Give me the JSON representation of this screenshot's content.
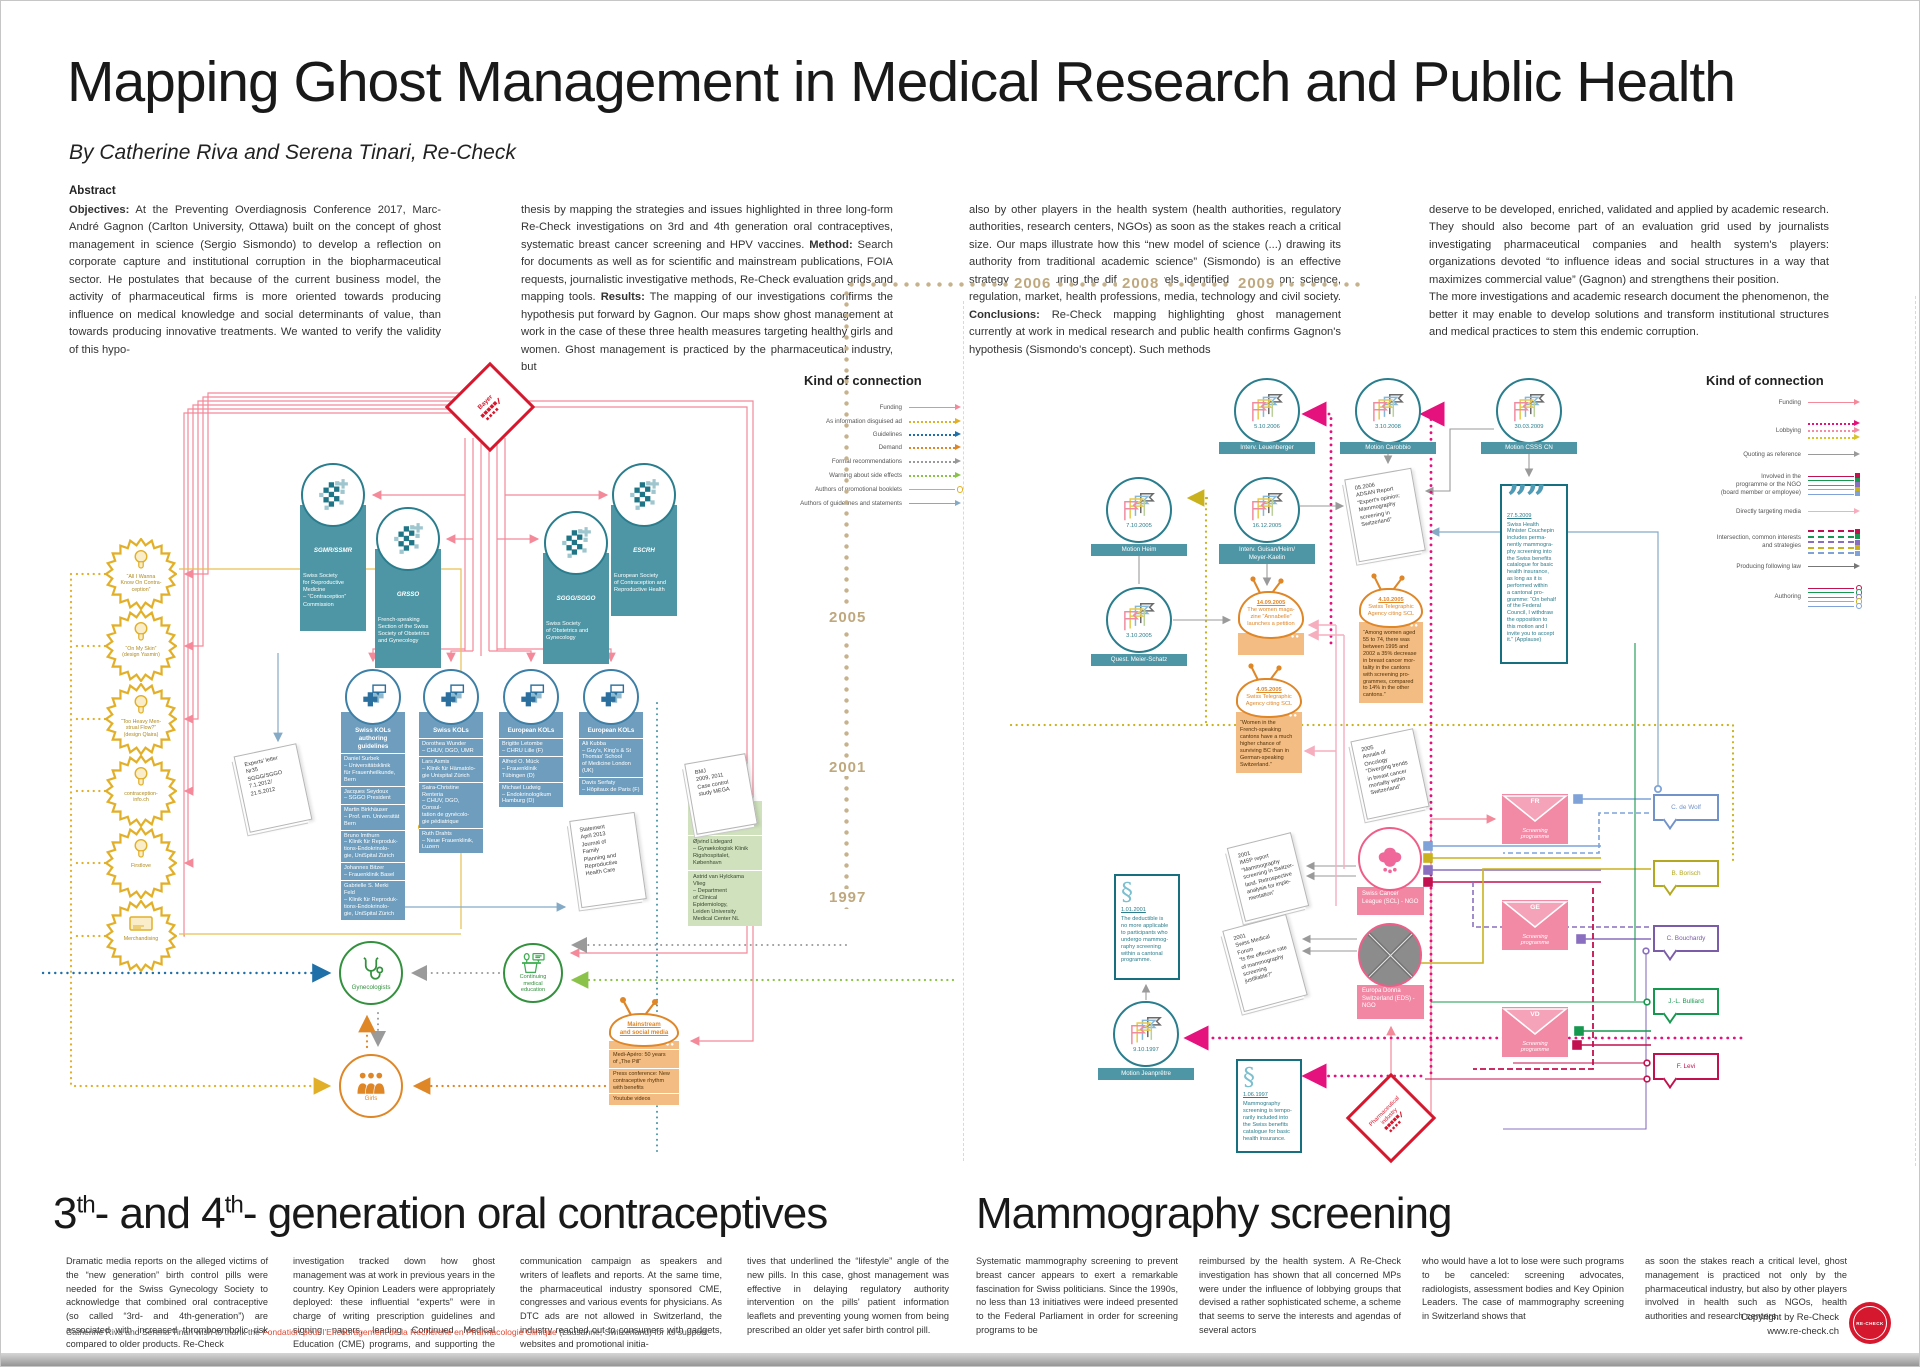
{
  "palette": {
    "teal": "#2a7d8d",
    "teal_box": "#4e96a5",
    "blue_box": "#6f9dbd",
    "pink_line": "#f4899a",
    "red": "#d6182e",
    "yellow": "#e2af28",
    "orange": "#df8627",
    "orange_fill": "#f3bc82",
    "green": "#33913e",
    "pink_node": "#f287a3",
    "magenta": "#e5127d",
    "tan": "#c6b28c"
  },
  "header": {
    "title": "Mapping Ghost Management in Medical Research and Public Health",
    "byline": "By Catherine Riva and Serena Tinari, Re-Check"
  },
  "abstract": {
    "heading": "Abstract",
    "col1": [
      {
        "b": "Objectives:"
      },
      {
        "t": " At the Preventing Overdiagnosis Conference 2017, Marc-André Gagnon (Carlton University, Ottawa) built on the concept of ghost management in science (Sergio Sismondo) to develop a reflection on corporate capture and institutional corruption in the biopharmaceutical sector. He postulates that because of the current business model, the activity of pharmaceutical firms is more oriented towards producing influence on medical knowledge and social determinants of value, than towards producing innovative treatments. We wanted to verify the validity of this hypo-"
      }
    ],
    "col2": [
      {
        "t": "thesis by mapping the strategies and issues highlighted in three long-form Re-Check investigations on 3rd and 4th generation oral contraceptives, systematic breast cancer screening and HPV vaccines. "
      },
      {
        "b": "Method:"
      },
      {
        "t": " Search for documents as well as for scientific and mainstream publications, FOIA requests, journalistic investigative methods, Re-Check evaluation grids and mapping tools. "
      },
      {
        "b": "Results:"
      },
      {
        "t": " The mapping of our investigations confirms the hypothesis put forward by Gagnon. Our maps show ghost management at work in the case of these three health measures targeting healthy girls and women. Ghost management is practiced by the pharmaceutical industry, but"
      }
    ],
    "col3": [
      {
        "t": "also by other players in the health system (health authorities, regulatory authorities, research centers, NGOs) as soon as the stakes reach a critical size. Our maps illustrate how this “new model of science (...) drawing its authority from traditional academic science” (Sismondo) is an effective strategy for capturing the different levels identified by Gagnon: science, regulation, market, health professions, media, technology and civil society. "
      },
      {
        "b": "Conclusions:"
      },
      {
        "t": " Re-Check mapping highlighting ghost management currently at work in medical research and public health confirms Gagnon's hypothesis (Sismondo's concept). Such methods"
      }
    ],
    "col4": [
      {
        "t": "deserve to be developed, enriched, validated and applied by academic research. They should also become part of an evaluation grid used by journalists investigating pharmaceutical companies and health system's players: organizations devoted “to influence ideas and social structures in a way that maximizes commercial value” (Gagnon) and strengthens their position.\nThe more investigations and academic research document the phenomenon, the better it may enable to develop solutions and transform institutional structures and medical practices to stem this endemic corruption."
      }
    ]
  },
  "legend_left": {
    "title": "Kind of connection",
    "items": [
      "Funding",
      "As information disguised ad",
      "Guidelines",
      "Demand",
      "Formal recommendations",
      "Warning about side effects",
      "Authors of promotional booklets",
      "Authors of guidelines and statements"
    ]
  },
  "legend_right": {
    "title": "Kind of connection",
    "items": [
      "Funding",
      "Lobbying",
      "Quoting as reference",
      "Involved in the\nprogramme or the NGO\n(board member or employee)",
      "Directly targeting media",
      "Intersection, common interests\nand strategies",
      "Producing following law",
      "Authoring"
    ]
  },
  "contraceptives": {
    "bayer": "Bayer",
    "societies": [
      {
        "abbr": "SGMR/SSMR",
        "desc": "Swiss Society\nfor Reproductive\nMedicine\n– “Contraception”\nCommission"
      },
      {
        "abbr": "GRSSO",
        "desc": "French-speaking\nSection of the Swiss\nSociety of Obstetrics\nand Gynecology"
      },
      {
        "abbr": "SGGG/SGGO",
        "desc": "Swiss Society\nof Obstetrics and\nGynecology"
      },
      {
        "abbr": "ESCRH",
        "desc": "European Society\nof Contraception and\nReproductive Health"
      }
    ],
    "badges": [
      "“All I Wanna\nKnow On Contra-\nception”",
      "“On My Skin”\n(design Yasmin)",
      "“Too Heavy Men-\nstrual Flow?”\n(design Qlaira)",
      "contraception-\ninfo.ch",
      "Firstlove",
      "Merchandising"
    ],
    "experts_letter": "Experts' letter\nNr35\nSGGG/SGGO\n7.1.2012/\n21.5.2012",
    "kol_groups": [
      {
        "title": "Swiss KOLs\nauthoring\nguidelines",
        "members": [
          "Daniel Surbek\n– Universitätsklinik\nfür Frauenheilkunde,\nBern",
          "Jacques Seydoux\n– SGGO President",
          "Martin Birkhäuser\n– Prof. em. Universität\nBern",
          "Bruno Imthurn\n– Klinik für Reproduk-\ntions-Endokrinolo-\ngie, UniSpital Zürich",
          "Johannes Bitzer\n– Frauenklinik Basel",
          "Gabrielle S. Merki\nFeld\n– Klinik für Reproduk-\ntions-Endokrinolo-\ngie, UniSpital Zürich"
        ]
      },
      {
        "title": "Swiss KOLs",
        "members": [
          "Dorothea Wunder\n– CHUV, DGO, UMR",
          "Lars Asmis\n– Klinik für Hämatolo-\ngie Unispital Zürich",
          "Saira-Christine\nRenteria\n– CHUV, DGO, Consul-\ntation de gynécolo-\ngie pédiatrique",
          "Ruth Drahts\n– Neue Frauenklinik,\nLuzern"
        ]
      },
      {
        "title": "European KOLs",
        "members": [
          "Brigitte Letombe\n– CHRU Lille (F)",
          "Alfred O. Mück\n– Frauenklinik\nTübingen (D)",
          "Michael Ludwig\n– Endokrinologikum\nHamburg (D)"
        ]
      },
      {
        "title": "European KOLs",
        "members": [
          "Ali Kubba\n– Guy's, King's & St\nThomas' School\nof Medicine London\n(UK)",
          "Davis Serfaty\n– Hôpitaux de Paris (F)"
        ]
      }
    ],
    "statement_paper": "Statement\nApril 2013\nJournal of\nFamily\nPlanning and\nReproductive\nHealth Care",
    "bmj_paper": "BMJ\n2009, 2011\nCase control\nstudy MEGA",
    "researchers": [
      "Øjvind Lidegard\n– Gynækologisk Klinik\nRigshospitalet,\nKøbenhavn",
      "Astrid van Hylckama\nVlieg\n– Department\nof Clinical\nEpidemiology,\nLeiden University\nMedical Center NL"
    ],
    "gynecologists": "Gynecologists",
    "cme": "Continuing\nmedical\neducation",
    "girls": "Girls",
    "media": {
      "title": "Mainstream\nand social media",
      "items": [
        "Medi-Apéro: 50 years\nof „The Pill“",
        "Press conference: New\ncontraceptive rhythm\nwith benefits",
        "Youtube videos"
      ]
    }
  },
  "mammography": {
    "years_top": [
      "2006",
      "2008",
      "2009"
    ],
    "years_left": [
      "2005",
      "2001",
      "1997"
    ],
    "motions": [
      {
        "date": "5.10.2006",
        "label": "Interv. Leuenberger"
      },
      {
        "date": "3.10.2008",
        "label": "Motion Carobbio"
      },
      {
        "date": "30.03.2009",
        "label": "Motion CSSS CN"
      },
      {
        "date": "7.10.2005",
        "label": "Motion Heim"
      },
      {
        "date": "16.12.2005",
        "label": "Interv. Guisan/Heim/\nMeyer-Kaelin"
      },
      {
        "date": "3.10.2005",
        "label": "Quest. Meier-Schatz"
      },
      {
        "date": "9.10.1997",
        "label": "Motion Jeanprêtre"
      }
    ],
    "adsan_paper": "05.2006\nADSAN Report\n“Expert's opinion:\nMammography\nscreening in\nSwitzerland”",
    "quote_box": {
      "date": "27.5.2009",
      "text": "Swiss Health\nMinister Couchepin\nincludes perma-\nnently mammogra-\nphy screening into\nthe Swiss benefits\ncatalogue for basic\nhealth insurance,\nas long as it is\nperformed within\na cantonal pro-\ngramme: “On behalf\nof the Federal\nCouncil, I withdraw\nthe opposition to\nthis motion and I\ninvite you to accept\nit.” (Applause)"
    },
    "tv_nodes": [
      {
        "date": "14.09.2005",
        "title": "The women maga-\nzine “Annabelle”\nlaunches a petition",
        "quote": ""
      },
      {
        "date": "4.10.2005",
        "title": "Swiss Telegraphic\nAgency citing SCL",
        "quote": "“Among women aged\n55 to 74, there was\nbetween 1995 and\n2002 a 35% decrease\nin breast cancer mor-\ntality in the cantons\nwith screening pro-\ngrammes, compared\nto 14% in the other\ncantons.”"
      },
      {
        "date": "4.05.2005",
        "title": "Swiss Telegraphic\nAgency citing SCL",
        "quote": "“Women in the\nFrench-speaking\ncantons have a much\nhigher chance of\nsurviving BC than in\nGerman-speaking\nSwitzerland.”"
      }
    ],
    "papers": [
      "2005\nAnnals of\nOncology\n“Diverging trends\nin breast cancer\nmortality within\nSwitzerland”",
      "2001\nIMSP report\n“Mammography\nscreening in Switzer-\nland. Retrospective\nanalysis for imple-\nmentation”",
      "2001\nSwiss Medical\nForum\n“Is the effective rate\nof mammography\nscreening\njustifiable?”"
    ],
    "law_boxes": [
      {
        "date": "1.01.2001",
        "text": "The deductible is\nno more applicable\nto participants who\nundergo mammog-\nraphy screening\nwithin a cantonal\nprogramme."
      },
      {
        "date": "1.06.1997",
        "text": "Mammography\nscreening is tempo-\nrarily included into\nthe Swiss benefits\ncatalogue for basic\nhealth insurance."
      }
    ],
    "ngos": [
      "Swiss Cancer\nLeague (SCL) - NGO",
      "Europa Donna\nSwitzerland (EDS) -\nNGO"
    ],
    "pharma": "Pharmaceutical\nindustry",
    "envelopes": [
      {
        "canton": "FR",
        "label": "Screening\nprogramme"
      },
      {
        "canton": "GE",
        "label": "Screening\nprogramme"
      },
      {
        "canton": "VD",
        "label": "Screening\nprogramme"
      }
    ],
    "people": [
      "C. de Wolf",
      "B. Borisch",
      "C. Bouchardy",
      "J.-L. Bulliard",
      "F. Levi"
    ]
  },
  "sections": {
    "left_heading": [
      {
        "t": "3"
      },
      {
        "sup": "th"
      },
      {
        "t": "- and 4"
      },
      {
        "sup": "th"
      },
      {
        "t": "- generation oral contraceptives"
      }
    ],
    "right_heading": "Mammography screening",
    "left_cols": [
      "Dramatic media reports on the alleged victims of the “new generation” birth control pills were needed for the Swiss Gynecology Society to acknowledge that combined oral contraceptive (so called “3rd- and 4th-generation”) are associated with increased thromboembolic risk compared to older products. Re-Check",
      "investigation tracked down how ghost management was at work in previous years in the country. Key Opinion Leaders were appropriately deployed: these influential “experts” were in charge of writing prescription guidelines and signing papers, leading Continued Medical Education (CME) programs, and supporting the industry",
      "communication campaign as speakers and writers of leaflets and reports. At the same time, the pharmaceutical industry sponsored CME, congresses and various events for physicians. As DTC ads are not allowed in Switzerland, the industry reached out to consumers with gadgets, websites and promotional initia-",
      "tives that underlined the “lifestyle” angle of the new pills. In this case, ghost management was effective in delaying regulatory authority intervention on the pills' patient information leaflets and preventing young women from being prescribed an older yet safer birth control pill."
    ],
    "right_cols": [
      "Systematic mammography screening to prevent breast cancer appears to exert a remarkable fascination for Swiss politicians. Since the 1990s, no less than 13 initiatives were indeed presented to the Federal Parliament in order for screening programs to be",
      "reimbursed by the health system. A Re-Check investigation has shown that all concerned MPs were under the influence of lobbying groups that devised a rather sophisticated scheme, a scheme that seems to serve the interests and agendas of several actors",
      "who would have a lot to lose were such programs to be canceled: screening advocates, radiologists, assessment bodies and Key Opinion Leaders. The case of mammography screening in Switzerland shows that",
      "as soon the stakes reach a critical level, ghost management is practiced not only by the pharmaceutical industry, but also by other players involved in health such as NGOs, health authorities and research centers."
    ]
  },
  "footer": {
    "ack_pre": "Catherine Riva and Serena Tinari wish to thank the ",
    "ack_link": "Fondation pour l'Encouragement de la Recherche en Pharmacologie Clinique",
    "ack_post": " (Lausanne, Switzerland) for its support.",
    "copyright_line1": "Copyright by Re-Check",
    "copyright_line2": "www.re-check.ch",
    "logo_text": "RE-CHECK"
  }
}
